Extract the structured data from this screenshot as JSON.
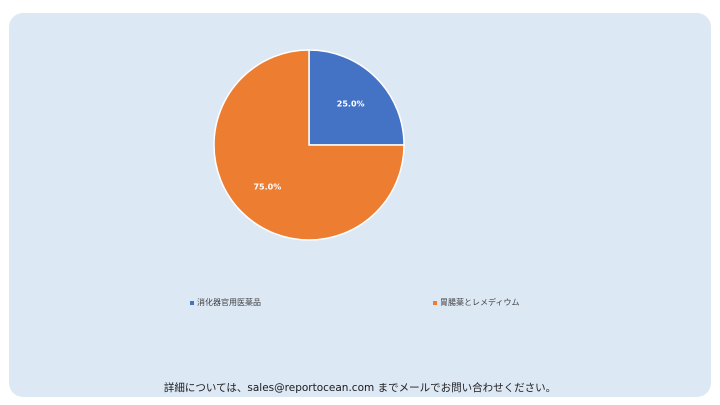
{
  "chart_data": {
    "type": "pie",
    "categories": [
      "消化器官用医薬品",
      "胃腸薬とレメディウム"
    ],
    "values": [
      25.0,
      75.0
    ],
    "data_labels": [
      "25.0%",
      "75.0%"
    ],
    "colors": [
      "#4472c4",
      "#ed7d31"
    ],
    "legend_position": "bottom"
  },
  "footer": {
    "text": "詳細については、sales@reportocean.com までメールでお問い合わせください。"
  }
}
